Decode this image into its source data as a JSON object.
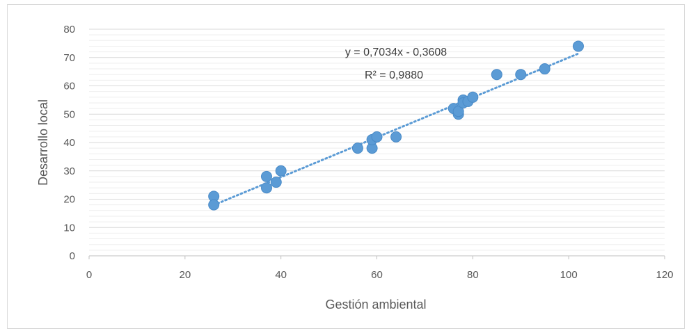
{
  "chart_data": {
    "type": "scatter",
    "title": "",
    "xlabel": "Gestión ambiental",
    "ylabel": "Desarrollo local",
    "xlim": [
      0,
      120
    ],
    "ylim": [
      0,
      80
    ],
    "x_ticks": [
      0,
      20,
      40,
      60,
      80,
      100,
      120
    ],
    "y_ticks": [
      0,
      10,
      20,
      30,
      40,
      50,
      60,
      70,
      80
    ],
    "grid": true,
    "legend": "none",
    "colors": {
      "marker": "#5b9bd5",
      "trendline": "#5b9bd5",
      "grid": "#d9d9d9",
      "axis": "#bfbfbf"
    },
    "series": [
      {
        "points": [
          [
            26,
            21
          ],
          [
            26,
            18
          ],
          [
            37,
            28
          ],
          [
            37,
            24
          ],
          [
            39,
            26
          ],
          [
            40,
            30
          ],
          [
            56,
            38
          ],
          [
            59,
            38
          ],
          [
            59,
            41
          ],
          [
            60,
            42
          ],
          [
            64,
            42
          ],
          [
            76,
            52
          ],
          [
            77,
            50
          ],
          [
            77,
            51
          ],
          [
            78,
            55
          ],
          [
            78,
            54
          ],
          [
            79,
            54.5
          ],
          [
            80,
            56
          ],
          [
            85,
            64
          ],
          [
            90,
            64
          ],
          [
            95,
            66
          ],
          [
            102,
            74
          ]
        ]
      }
    ],
    "trendline": {
      "type": "linear",
      "slope": 0.7034,
      "intercept": -0.3608,
      "x_range": [
        26,
        102
      ],
      "equation": "y = 0,7034x - 0,3608",
      "r_squared": "R² = 0,9880"
    }
  }
}
